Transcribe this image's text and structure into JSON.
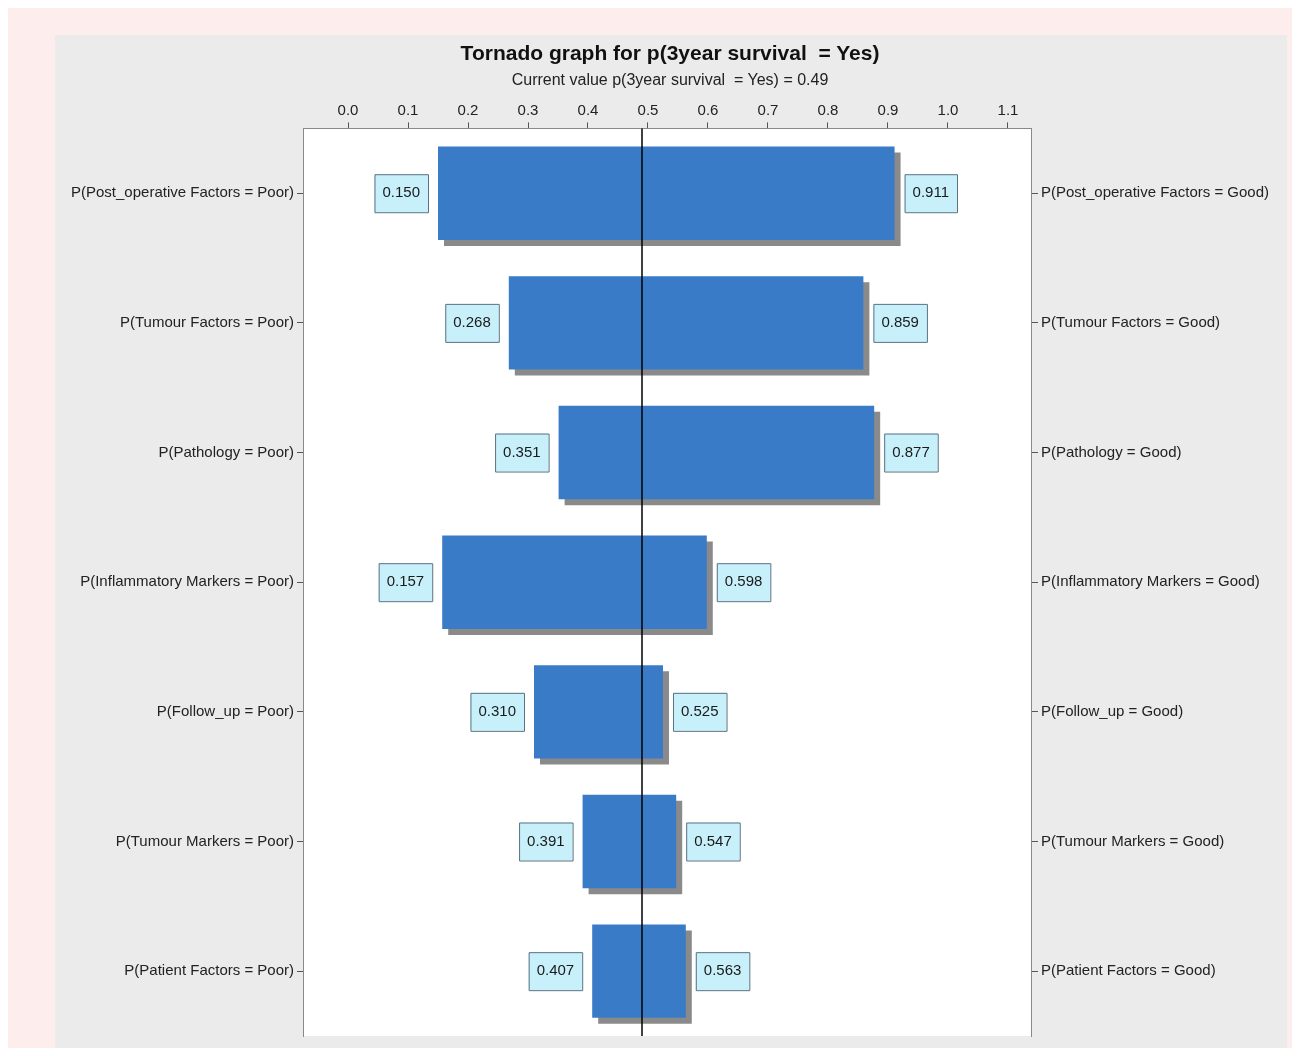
{
  "chart_data": {
    "type": "bar",
    "orientation": "horizontal",
    "title": "Tornado graph for p(3year survival  = Yes)",
    "subtitle": "Current value p(3year survival  = Yes) = 0.49",
    "categories": [
      "P(Post_operative Factors = Poor)",
      "P(Tumour Factors = Poor)",
      "P(Pathology = Poor)",
      "P(Inflammatory Markers = Poor)",
      "P(Follow_up = Poor)",
      "P(Tumour Markers = Poor)",
      "P(Patient Factors = Poor)"
    ],
    "y2_categories": [
      "P(Post_operative Factors = Good)",
      "P(Tumour Factors = Good)",
      "P(Pathology = Good)",
      "P(Inflammatory Markers = Good)",
      "P(Follow_up = Good)",
      "P(Tumour Markers = Good)",
      "P(Patient Factors = Good)"
    ],
    "base": [
      0.15,
      0.268,
      0.351,
      0.157,
      0.31,
      0.391,
      0.407
    ],
    "values": [
      0.761,
      0.591,
      0.526,
      0.441,
      0.215,
      0.156,
      0.156
    ],
    "color": "#3a7bc8",
    "xlim": [
      -0.075,
      1.14
    ],
    "xticks": [
      {
        "value": 0,
        "label": "0.0"
      },
      0.1,
      0.2,
      0.3,
      0.4,
      0.5,
      0.6,
      0.7,
      0.8,
      0.9,
      {
        "value": 1,
        "label": "1.0"
      },
      1.1
    ],
    "ref_lines": [
      {
        "axis": "x",
        "value": 0.49,
        "color": "#000000"
      }
    ],
    "annotations": [
      {
        "text": "0.150",
        "x": 0.15,
        "y": "P(Post_operative Factors = Poor)"
      },
      {
        "text": "0.911",
        "x": 0.911,
        "y": "P(Post_operative Factors = Poor)"
      },
      {
        "text": "0.268",
        "x": 0.268,
        "y": "P(Tumour Factors = Poor)"
      },
      {
        "text": "0.859",
        "x": 0.859,
        "y": "P(Tumour Factors = Poor)"
      },
      {
        "text": "0.351",
        "x": 0.351,
        "y": "P(Pathology = Poor)"
      },
      {
        "text": "0.877",
        "x": 0.877,
        "y": "P(Pathology = Poor)"
      },
      {
        "text": "0.157",
        "x": 0.157,
        "y": "P(Inflammatory Markers = Poor)"
      },
      {
        "text": "0.598",
        "x": 0.598,
        "y": "P(Inflammatory Markers = Poor)"
      },
      {
        "text": "0.310",
        "x": 0.31,
        "y": "P(Follow_up = Poor)"
      },
      {
        "text": "0.525",
        "x": 0.525,
        "y": "P(Follow_up = Poor)"
      },
      {
        "text": "0.391",
        "x": 0.391,
        "y": "P(Tumour Markers = Poor)"
      },
      {
        "text": "0.547",
        "x": 0.547,
        "y": "P(Tumour Markers = Poor)"
      },
      {
        "text": "0.407",
        "x": 0.407,
        "y": "P(Patient Factors = Poor)"
      },
      {
        "text": "0.563",
        "x": 0.563,
        "y": "P(Patient Factors = Poor)"
      }
    ]
  }
}
